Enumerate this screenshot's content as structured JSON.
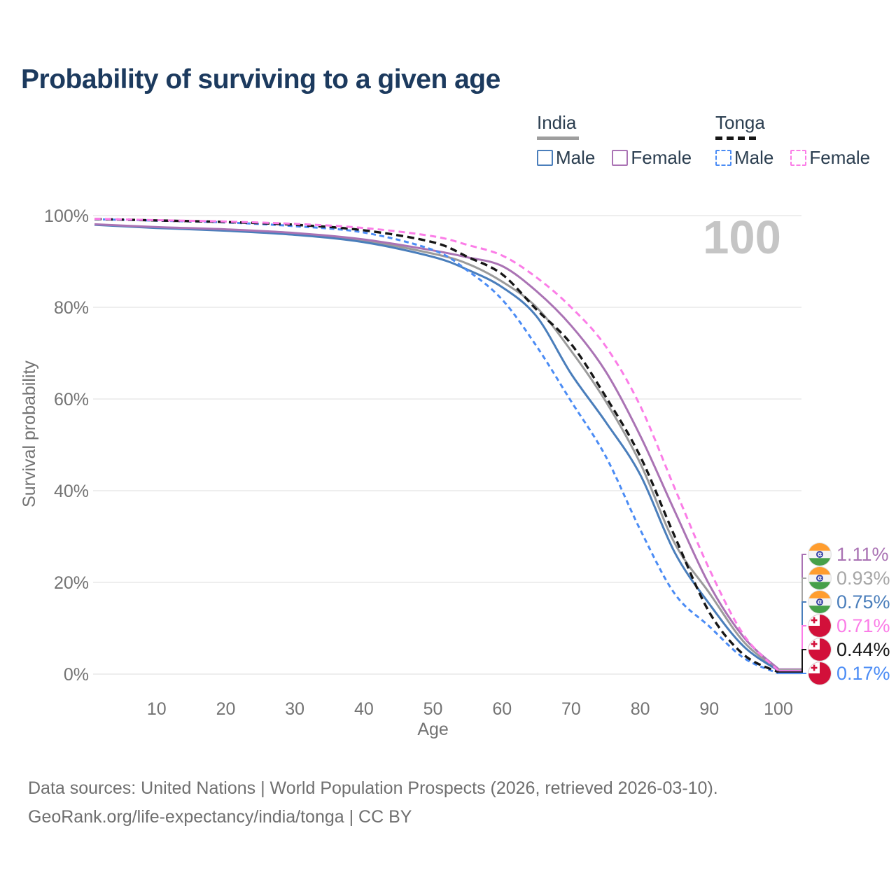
{
  "page": {
    "title": "Probability of surviving to a given age"
  },
  "legend": {
    "groups": [
      {
        "name": "India",
        "line_style": "solid",
        "line_color": "#9b9b9b",
        "items": [
          {
            "label": "Male",
            "color": "#4a7ebb"
          },
          {
            "label": "Female",
            "color": "#aa73b4"
          }
        ]
      },
      {
        "name": "Tonga",
        "line_style": "dashed",
        "line_color": "#161616",
        "items": [
          {
            "label": "Male",
            "color": "#4b8cf5"
          },
          {
            "label": "Female",
            "color": "#fb7de7"
          }
        ]
      }
    ]
  },
  "chart_data": {
    "type": "line",
    "title": "Probability of surviving to a given age",
    "xlabel": "Age",
    "ylabel": "Survival probability",
    "xlim": [
      1,
      100
    ],
    "ylim": [
      0,
      100
    ],
    "x_ticks": [
      10,
      20,
      30,
      40,
      50,
      60,
      70,
      80,
      90,
      100
    ],
    "y_ticks": [
      0,
      20,
      40,
      60,
      80,
      100
    ],
    "y_tick_suffix": "%",
    "grid": "horizontal-only",
    "legend_position": "top-right",
    "hover_age_indicator": "100",
    "x": [
      1,
      10,
      20,
      30,
      40,
      50,
      55,
      60,
      65,
      70,
      75,
      80,
      85,
      90,
      95,
      100
    ],
    "series": [
      {
        "name": "India Both sexes",
        "color": "#9b9b9b",
        "dash": "solid",
        "values": [
          98.05,
          97.4,
          96.85,
          96.0,
          94.5,
          91.7,
          89.5,
          85.6,
          80.0,
          70.5,
          59.5,
          46.0,
          28.5,
          17.7,
          7.0,
          0.93
        ]
      },
      {
        "name": "India Male",
        "color": "#4a7ebb",
        "dash": "solid",
        "values": [
          98.0,
          97.3,
          96.7,
          95.8,
          94.2,
          91.0,
          88.2,
          84.4,
          78.0,
          65.5,
          55.0,
          43.5,
          26.5,
          15.3,
          6.0,
          0.75
        ]
      },
      {
        "name": "India Female",
        "color": "#aa73b4",
        "dash": "solid",
        "values": [
          98.1,
          97.5,
          97.0,
          96.2,
          94.8,
          92.4,
          90.9,
          89.0,
          83.5,
          76.0,
          66.0,
          52.0,
          35.5,
          19.5,
          8.0,
          1.11
        ]
      },
      {
        "name": "Tonga Male",
        "color": "#4b8cf5",
        "dash": "dashed",
        "values": [
          99.2,
          98.9,
          98.5,
          97.7,
          96.3,
          92.5,
          88.0,
          81.7,
          71.5,
          59.5,
          47.5,
          31.5,
          17.5,
          10.4,
          3.5,
          0.17
        ]
      },
      {
        "name": "Tonga Both sexes",
        "color": "#161616",
        "dash": "dashed",
        "values": [
          99.25,
          98.95,
          98.6,
          98.0,
          96.8,
          94.2,
          91.0,
          87.2,
          79.5,
          72.0,
          60.5,
          47.5,
          30.0,
          13.5,
          4.2,
          0.44
        ]
      },
      {
        "name": "Tonga Female",
        "color": "#fb7de7",
        "dash": "dashed",
        "values": [
          99.3,
          99.0,
          98.7,
          98.2,
          97.3,
          95.5,
          93.6,
          91.3,
          86.5,
          80.0,
          71.5,
          58.5,
          40.5,
          22.9,
          8.5,
          0.71
        ]
      }
    ]
  },
  "end_labels": [
    {
      "value": "1.11%",
      "series": "India Female",
      "flag": "india",
      "color": "#aa73b4"
    },
    {
      "value": "0.93%",
      "series": "India Both sexes",
      "flag": "india",
      "color": "#a6a6a6"
    },
    {
      "value": "0.75%",
      "series": "India Male",
      "flag": "india",
      "color": "#4a7ebb"
    },
    {
      "value": "0.71%",
      "series": "Tonga Female",
      "flag": "tonga",
      "color": "#fb7de7"
    },
    {
      "value": "0.44%",
      "series": "Tonga Both sexes",
      "flag": "tonga",
      "color": "#161616"
    },
    {
      "value": "0.17%",
      "series": "Tonga Male",
      "flag": "tonga",
      "color": "#4b8cf5"
    }
  ],
  "footer": {
    "line1": "Data sources: United Nations | World Population Prospects (2026, retrieved 2026-03-10).",
    "line2": "GeoRank.org/life-expectancy/india/tonga | CC BY"
  }
}
